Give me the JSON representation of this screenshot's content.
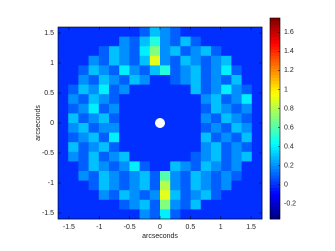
{
  "chart_data": {
    "type": "heatmap",
    "colormap": "jet",
    "xlabel": "arcseconds",
    "ylabel": "arcseconds",
    "xlim": [
      -1.68,
      1.68
    ],
    "ylim": [
      -1.6,
      1.6
    ],
    "xticks": [
      -1.5,
      -1,
      -0.5,
      0,
      0.5,
      1,
      1.5
    ],
    "yticks": [
      -1.5,
      -1,
      -0.5,
      0,
      0.5,
      1,
      1.5
    ],
    "clim": [
      -0.36,
      1.75
    ],
    "cticks": [
      -0.2,
      0,
      0.2,
      0.4,
      0.6,
      0.8,
      1,
      1.2,
      1.4,
      1.6
    ],
    "z": [
      [
        0,
        0,
        0,
        0,
        0,
        0,
        0,
        0,
        0.1,
        0.3,
        0.2,
        0.1,
        0,
        0,
        0,
        0,
        0,
        0,
        0,
        0
      ],
      [
        0,
        0,
        0,
        0,
        0,
        0,
        0.2,
        0.1,
        0.3,
        0.5,
        0.2,
        0.1,
        0.3,
        0.1,
        0,
        0,
        0,
        0,
        0,
        0
      ],
      [
        0,
        0,
        0,
        0,
        0.1,
        0.3,
        0.2,
        0.1,
        0.4,
        0.7,
        0.2,
        0.3,
        0.1,
        0.2,
        0.3,
        0.1,
        0,
        0,
        0,
        0
      ],
      [
        0,
        0,
        0,
        0.2,
        0.1,
        0.3,
        0.2,
        0.1,
        0.3,
        0.9,
        0.2,
        0.1,
        0.3,
        0.2,
        0.1,
        0.2,
        0.3,
        0,
        0,
        0
      ],
      [
        0,
        0,
        0.1,
        0.3,
        0.2,
        0.1,
        0.4,
        0.2,
        0.1,
        0.3,
        0.5,
        0.1,
        0.2,
        0.3,
        0.1,
        0.2,
        0.4,
        0.1,
        0,
        0
      ],
      [
        0,
        0,
        0.2,
        0.1,
        0.3,
        0.2,
        0.1,
        0.3,
        0.2,
        0,
        0,
        0.1,
        0.2,
        0.3,
        0.1,
        0.2,
        0.1,
        0.3,
        0,
        0
      ],
      [
        0,
        0.1,
        0.3,
        0.2,
        0.4,
        0.1,
        0.2,
        0,
        0,
        0,
        0,
        0,
        0,
        0.3,
        0.1,
        0.2,
        0.4,
        0.2,
        0.1,
        0
      ],
      [
        0,
        0.2,
        0.1,
        0.3,
        0.2,
        0.1,
        0,
        0,
        0,
        0,
        0,
        0,
        0,
        0,
        0.2,
        0.3,
        0.1,
        0.2,
        0.4,
        0
      ],
      [
        0,
        0.1,
        0.2,
        0.4,
        0.1,
        0.2,
        0,
        0,
        0,
        0,
        0,
        0,
        0,
        0,
        0.1,
        0.3,
        0.2,
        0.1,
        0.2,
        0
      ],
      [
        0,
        0.3,
        0.1,
        0.2,
        0.3,
        0.1,
        0,
        0,
        0,
        0,
        0,
        0,
        0,
        0,
        0.2,
        0.1,
        0.3,
        0.2,
        0.1,
        0
      ],
      [
        0,
        0.2,
        0.3,
        0.1,
        0.2,
        0.2,
        0,
        0,
        0,
        0,
        0,
        0,
        0,
        0,
        0.1,
        0.2,
        0.1,
        0.3,
        0.2,
        0
      ],
      [
        0,
        0.1,
        0.2,
        0.3,
        0.1,
        0.4,
        0,
        0,
        0,
        0,
        0,
        0,
        0,
        0,
        0.3,
        0.1,
        0.2,
        0.1,
        0.3,
        0
      ],
      [
        0,
        0.3,
        0.1,
        0.2,
        0.3,
        0.1,
        0,
        0,
        0,
        0,
        0,
        0,
        0,
        0,
        0.2,
        0.3,
        0.1,
        0.2,
        0.1,
        0
      ],
      [
        0,
        0.2,
        0.1,
        0.3,
        0.1,
        0.2,
        0.3,
        0,
        0,
        0,
        0,
        0,
        0,
        0.1,
        0.2,
        0.3,
        0.1,
        0.2,
        0.3,
        0
      ],
      [
        0,
        0,
        0.1,
        0.3,
        0.2,
        0.1,
        0.2,
        0.4,
        0.1,
        0,
        0,
        0.3,
        0.2,
        0.1,
        0.3,
        0.2,
        0.1,
        0.2,
        0,
        0
      ],
      [
        0,
        0,
        0.2,
        0.1,
        0.3,
        0.2,
        0.1,
        0.2,
        0.3,
        0.1,
        0.6,
        0.2,
        0.1,
        0.3,
        0.2,
        0.1,
        0.2,
        0.1,
        0,
        0
      ],
      [
        0,
        0,
        0,
        0.1,
        0.3,
        0.2,
        0.1,
        0.2,
        0.3,
        0.1,
        0.8,
        0.2,
        0.1,
        0.3,
        0.2,
        0.1,
        0.2,
        0,
        0,
        0
      ],
      [
        0,
        0,
        0,
        0,
        0.2,
        0.1,
        0.3,
        0.2,
        0.1,
        0.2,
        0.9,
        0.3,
        0.1,
        0.2,
        0.3,
        0.1,
        0,
        0,
        0,
        0
      ],
      [
        0,
        0,
        0,
        0,
        0,
        0,
        0.1,
        0.2,
        0.3,
        0.1,
        0.7,
        0.2,
        0.1,
        0.3,
        0,
        0,
        0,
        0,
        0,
        0
      ],
      [
        0,
        0,
        0,
        0,
        0,
        0,
        0,
        0,
        0.2,
        0.1,
        0.4,
        0.1,
        0,
        0,
        0,
        0,
        0,
        0,
        0,
        0
      ]
    ]
  }
}
